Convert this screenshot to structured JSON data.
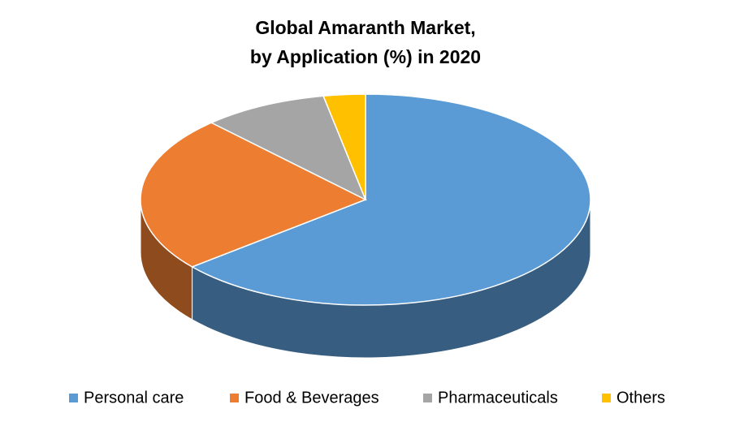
{
  "chart_data": {
    "type": "pie3d",
    "title": [
      "Global Amaranth Market,",
      "by Application (%) in 2020"
    ],
    "categories": [
      "Personal care",
      "Food & Beverages",
      "Pharmaceuticals",
      "Others"
    ],
    "values": [
      64,
      24,
      9,
      3
    ],
    "colors": [
      "#5b9bd5",
      "#ed7d31",
      "#a5a5a5",
      "#ffc000"
    ],
    "legend": "bottom"
  }
}
